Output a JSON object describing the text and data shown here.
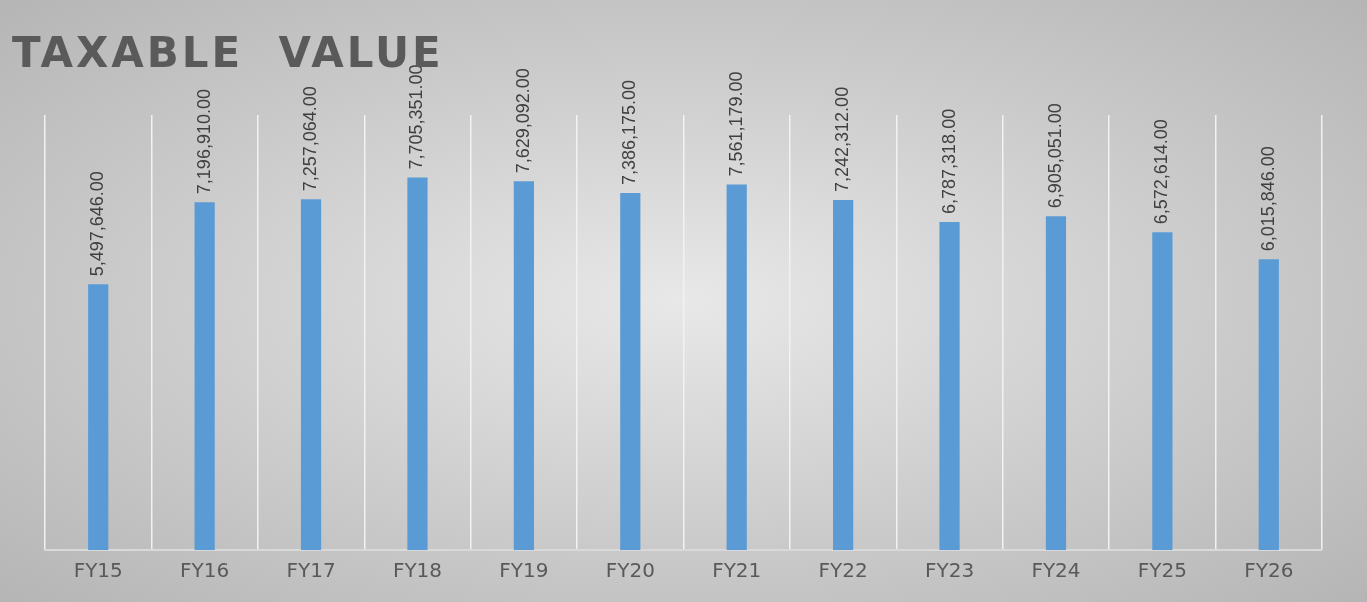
{
  "chart_data": {
    "type": "bar",
    "title": "TAXABLE  VALUE",
    "categories": [
      "FY15",
      "FY16",
      "FY17",
      "FY18",
      "FY19",
      "FY20",
      "FY21",
      "FY22",
      "FY23",
      "FY24",
      "FY25",
      "FY26"
    ],
    "values": [
      5497646,
      7196910,
      7257064,
      7705351,
      7629092,
      7386175,
      7561179,
      7242312,
      6787318,
      6905051,
      6572614,
      6015846
    ],
    "value_labels": [
      "5,497,646.00",
      "7,196,910.00",
      "7,257,064.00",
      "7,705,351.00",
      "7,629,092.00",
      "7,386,175.00",
      "7,561,179.00",
      "7,242,312.00",
      "6,787,318.00",
      "6,905,051.00",
      "6,572,614.00",
      "6,015,846.00"
    ],
    "color": "#5b9bd5",
    "ylim": [
      0,
      9000000
    ],
    "grid": "x",
    "legend": false,
    "tick_labels": "x"
  }
}
